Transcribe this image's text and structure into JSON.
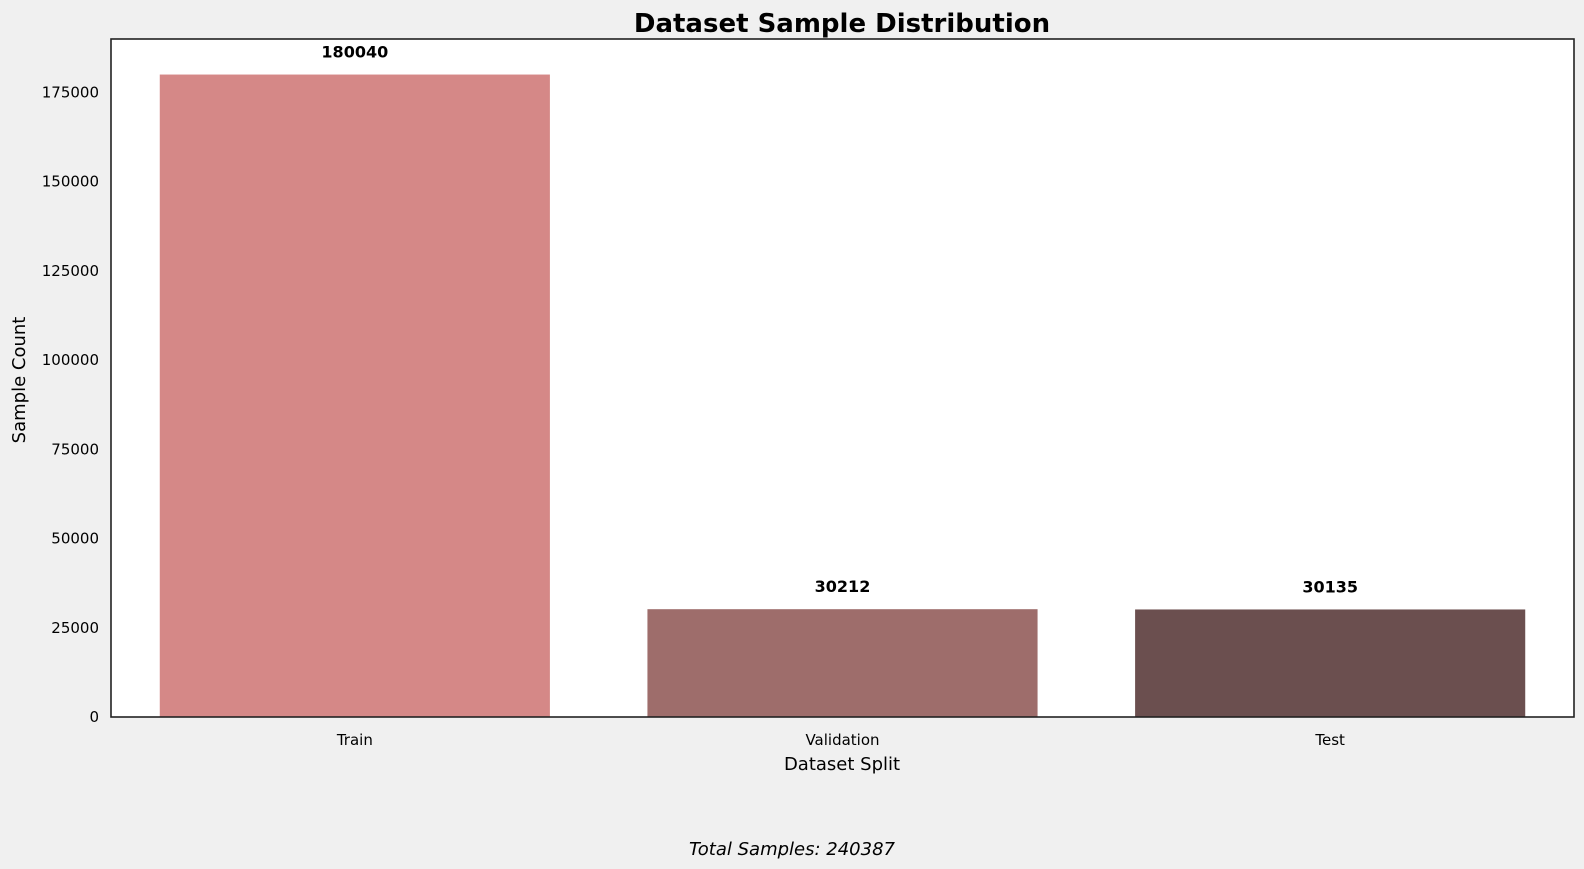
{
  "chart_data": {
    "type": "bar",
    "title": "Dataset Sample Distribution",
    "xlabel": "Dataset Split",
    "ylabel": "Sample Count",
    "categories": [
      "Train",
      "Validation",
      "Test"
    ],
    "values": [
      180040,
      30212,
      30135
    ],
    "value_labels": [
      "180040",
      "30212",
      "30135"
    ],
    "colors": [
      "#d58887",
      "#9e6d6b",
      "#6b4f4f"
    ],
    "ylim": [
      0,
      190000
    ],
    "yticks": [
      0,
      25000,
      50000,
      75000,
      100000,
      125000,
      150000,
      175000
    ],
    "ytick_labels": [
      "0",
      "25000",
      "50000",
      "75000",
      "100000",
      "125000",
      "150000",
      "175000"
    ],
    "grid": false,
    "legend": "none",
    "footnote": "Total Samples: 240387"
  }
}
